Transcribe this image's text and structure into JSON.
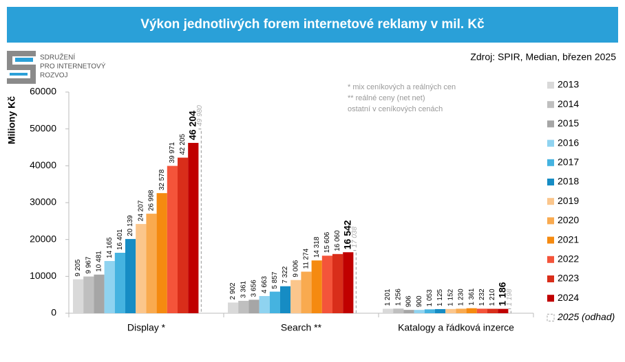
{
  "title": "Výkon jednotlivých forem internetové reklamy v mil. Kč",
  "source": "Zdroj: SPIR, Median, březen 2025",
  "logo": [
    "SDRUŽENÍ",
    "PRO INTERNETOVÝ",
    "ROZVOJ"
  ],
  "chart_data": {
    "type": "bar",
    "ylabel": "Miliony Kč",
    "notes": [
      "* mix ceníkových a reálných cen",
      "** reálné ceny (net net)",
      "ostatní v ceníkových cenách"
    ],
    "categories": [
      "Display *",
      "Search **",
      "Katalogy a řádková inzerce"
    ],
    "ylim": [
      0,
      60000
    ],
    "yticks": [
      0,
      10000,
      20000,
      30000,
      40000,
      50000,
      60000
    ],
    "legend": "right",
    "series": [
      {
        "name": "2013",
        "color": "#d9d9d9",
        "values": [
          9205,
          2902,
          1201
        ],
        "value_labels": [
          "9 205",
          "2 902",
          "1 201"
        ]
      },
      {
        "name": "2014",
        "color": "#bfbfbf",
        "values": [
          9967,
          3361,
          1256
        ],
        "value_labels": [
          "9 967",
          "3 361",
          "1 256"
        ]
      },
      {
        "name": "2015",
        "color": "#a6a6a6",
        "values": [
          10481,
          3656,
          906
        ],
        "value_labels": [
          "10 481",
          "3 656",
          "906"
        ]
      },
      {
        "name": "2016",
        "color": "#8fd3f0",
        "values": [
          14165,
          4663,
          900
        ],
        "value_labels": [
          "14 165",
          "4 663",
          "900"
        ]
      },
      {
        "name": "2017",
        "color": "#45b3e0",
        "values": [
          16401,
          5857,
          1053
        ],
        "value_labels": [
          "16 401",
          "5 857",
          "1 053"
        ]
      },
      {
        "name": "2018",
        "color": "#168cc4",
        "values": [
          20139,
          7322,
          1125
        ],
        "value_labels": [
          "20 139",
          "7 322",
          "1 125"
        ]
      },
      {
        "name": "2019",
        "color": "#fbc68c",
        "values": [
          24207,
          9006,
          1152
        ],
        "value_labels": [
          "24 207",
          "9 006",
          "1 152"
        ]
      },
      {
        "name": "2020",
        "color": "#f9aa4f",
        "values": [
          26998,
          11274,
          1230
        ],
        "value_labels": [
          "26 998",
          "11 274",
          "1 230"
        ]
      },
      {
        "name": "2021",
        "color": "#f58a10",
        "values": [
          32578,
          14318,
          1361
        ],
        "value_labels": [
          "32 578",
          "14 318",
          "1 361"
        ]
      },
      {
        "name": "2022",
        "color": "#f4543a",
        "values": [
          39971,
          15606,
          1232
        ],
        "value_labels": [
          "39 971",
          "15 606",
          "1 232"
        ]
      },
      {
        "name": "2023",
        "color": "#d92e1a",
        "values": [
          42205,
          16060,
          1210
        ],
        "value_labels": [
          "42 205",
          "16 060",
          "1 210"
        ]
      },
      {
        "name": "2024",
        "color": "#c00000",
        "values": [
          46204,
          16542,
          1186
        ],
        "value_labels": [
          "46 204",
          "16 542",
          "1 186"
        ]
      },
      {
        "name": "2025 (odhad)",
        "color": "#a6a6a6",
        "dashed": true,
        "values": [
          49980,
          17038,
          1198
        ],
        "value_labels": [
          "49 980",
          "17 038",
          "1 198"
        ]
      }
    ]
  }
}
